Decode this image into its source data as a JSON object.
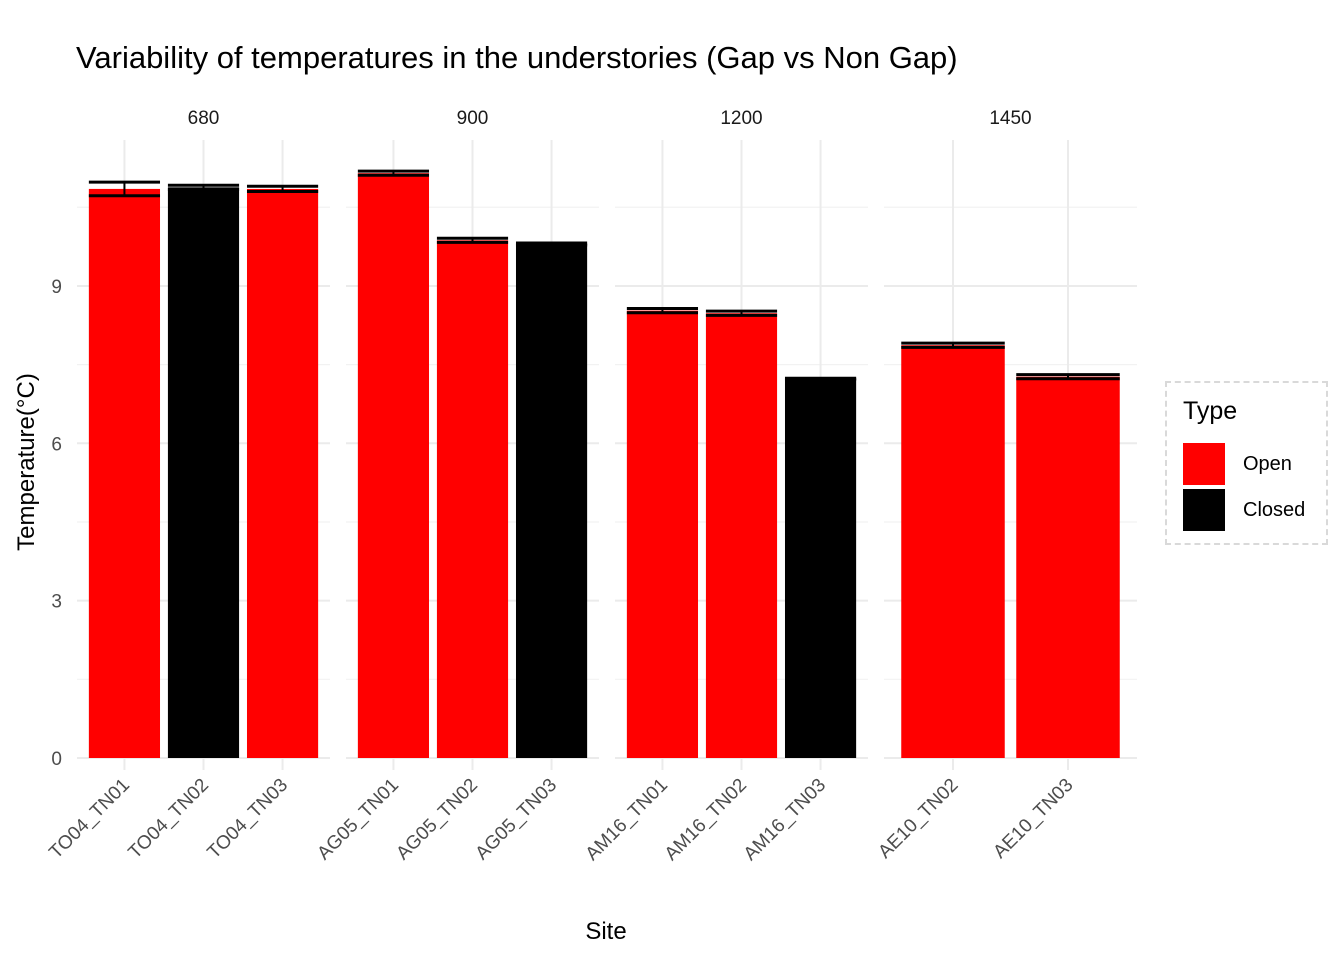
{
  "chart_data": {
    "type": "bar",
    "title": "Variability of temperatures in the understories (Gap vs Non Gap)",
    "xlabel": "Site",
    "ylabel": "Temperature(°C)",
    "ylim": [
      0,
      11.8
    ],
    "yticks": [
      0,
      3,
      6,
      9
    ],
    "grid": true,
    "legend": {
      "title": "Type",
      "placement": "right",
      "entries": [
        {
          "name": "Open",
          "color": "#ff0000"
        },
        {
          "name": "Closed",
          "color": "#000000"
        }
      ]
    },
    "facets": [
      {
        "label": "680",
        "bars": [
          {
            "site": "TO04_TN01",
            "type": "Open",
            "value": 10.85,
            "error": 0.13
          },
          {
            "site": "TO04_TN02",
            "type": "Closed",
            "value": 10.88,
            "error": 0.04
          },
          {
            "site": "TO04_TN03",
            "type": "Open",
            "value": 10.85,
            "error": 0.05
          }
        ]
      },
      {
        "label": "900",
        "bars": [
          {
            "site": "AG05_TN01",
            "type": "Open",
            "value": 11.15,
            "error": 0.04
          },
          {
            "site": "AG05_TN02",
            "type": "Open",
            "value": 9.87,
            "error": 0.04
          },
          {
            "site": "AG05_TN03",
            "type": "Closed",
            "value": 9.8,
            "error": 0.02
          }
        ]
      },
      {
        "label": "1200",
        "bars": [
          {
            "site": "AM16_TN01",
            "type": "Open",
            "value": 8.53,
            "error": 0.04
          },
          {
            "site": "AM16_TN02",
            "type": "Open",
            "value": 8.48,
            "error": 0.04
          },
          {
            "site": "AM16_TN03",
            "type": "Closed",
            "value": 7.23,
            "error": 0.01
          }
        ]
      },
      {
        "label": "1450",
        "bars": [
          {
            "site": "AE10_TN02",
            "type": "Open",
            "value": 7.87,
            "error": 0.04
          },
          {
            "site": "AE10_TN03",
            "type": "Open",
            "value": 7.27,
            "error": 0.04
          }
        ]
      }
    ]
  }
}
